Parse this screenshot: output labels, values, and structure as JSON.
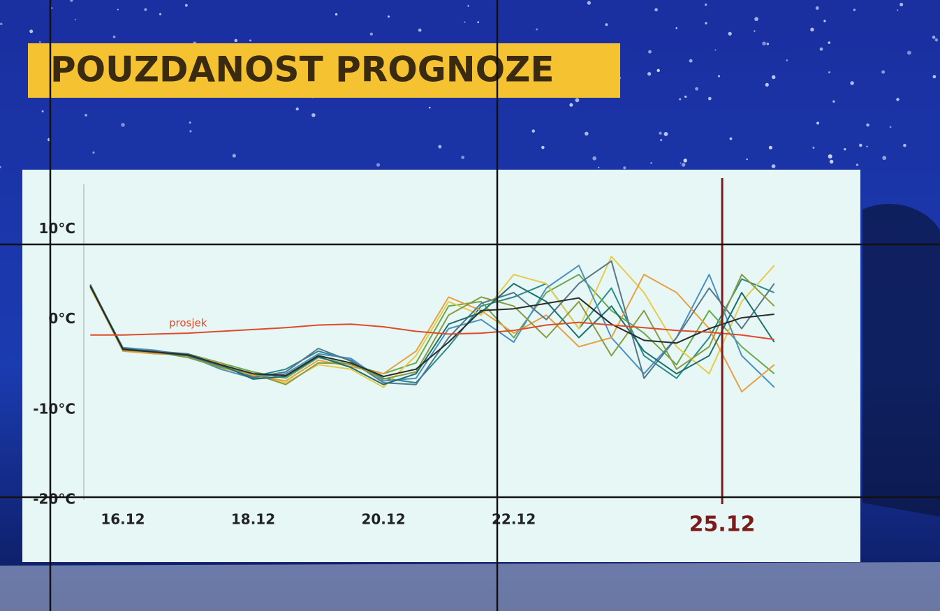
{
  "chart_data": {
    "type": "line",
    "title": "POUZDANOST PROGNOZE",
    "x": [
      15.5,
      16,
      16.5,
      17,
      17.5,
      18,
      18.5,
      19,
      19.5,
      20,
      20.5,
      21,
      21.5,
      22,
      22.5,
      23,
      23.5,
      24,
      24.5,
      25,
      25.5,
      26
    ],
    "xlim": [
      15.4,
      27.3
    ],
    "xticks": [
      {
        "value": 16,
        "label": "16.12"
      },
      {
        "value": 18,
        "label": "18.12"
      },
      {
        "value": 20,
        "label": "20.12"
      },
      {
        "value": 22,
        "label": "22.12"
      }
    ],
    "highlight": {
      "value": 25.2,
      "label": "25.12",
      "color": "#7d1a1a"
    },
    "ylim": [
      -20,
      15
    ],
    "yticks": [
      {
        "value": 10,
        "label": "10°C"
      },
      {
        "value": 0,
        "label": "0°C"
      },
      {
        "value": -10,
        "label": "-10°C"
      },
      {
        "value": -20,
        "label": "-20°C"
      }
    ],
    "series": [
      {
        "color": "#2a8a8a",
        "values": [
          3.8,
          -3.2,
          -3.5,
          -4.0,
          -5.2,
          -6.3,
          -5.5,
          -3.5,
          -4.5,
          -6.5,
          -7.0,
          -3.0,
          1.5,
          2.5,
          4.0,
          -1.0,
          3.5,
          -4.0,
          -6.5,
          -2.0,
          4.5,
          3.0
        ]
      },
      {
        "color": "#6aa84f",
        "values": [
          3.6,
          -3.4,
          -3.7,
          -3.8,
          -4.8,
          -5.8,
          -6.5,
          -4.2,
          -5.0,
          -6.0,
          -4.8,
          1.5,
          2.0,
          -2.0,
          3.0,
          5.0,
          1.0,
          -1.5,
          -5.0,
          1.0,
          -3.0,
          -6.0
        ]
      },
      {
        "color": "#e6cc4a",
        "values": [
          3.5,
          -3.3,
          -3.6,
          -4.1,
          -5.4,
          -6.1,
          -7.0,
          -5.0,
          -5.5,
          -7.5,
          -4.0,
          2.0,
          0.5,
          5.0,
          4.0,
          -1.0,
          7.0,
          3.0,
          -3.0,
          -6.0,
          2.0,
          6.0
        ]
      },
      {
        "color": "#4a90c0",
        "values": [
          3.7,
          -3.1,
          -3.4,
          -4.0,
          -5.5,
          -6.5,
          -6.0,
          -3.8,
          -4.3,
          -6.8,
          -6.5,
          -1.0,
          0.0,
          -2.5,
          3.5,
          6.0,
          -2.0,
          -6.0,
          -2.0,
          5.0,
          -4.0,
          -7.5
        ]
      },
      {
        "color": "#e8a040",
        "values": [
          3.6,
          -3.5,
          -3.8,
          -3.9,
          -4.9,
          -6.2,
          -6.8,
          -4.5,
          -5.2,
          -6.0,
          -3.5,
          2.5,
          1.0,
          -1.5,
          0.5,
          -3.0,
          -2.0,
          5.0,
          3.0,
          -1.0,
          -8.0,
          -5.0
        ]
      },
      {
        "color": "#557788",
        "values": [
          3.9,
          -3.3,
          -3.5,
          -3.8,
          -5.1,
          -6.4,
          -5.8,
          -3.2,
          -4.6,
          -7.0,
          -7.2,
          -2.0,
          1.8,
          3.0,
          0.0,
          4.0,
          6.5,
          -6.5,
          -2.0,
          3.5,
          -1.0,
          4.0
        ]
      },
      {
        "color": "#8a9a40",
        "values": [
          3.7,
          -3.4,
          -3.6,
          -4.2,
          -5.3,
          -6.0,
          -7.2,
          -4.8,
          -4.9,
          -6.6,
          -5.8,
          0.5,
          2.5,
          1.5,
          -2.0,
          2.0,
          -4.0,
          1.0,
          -5.5,
          -3.0,
          5.0,
          1.5
        ]
      },
      {
        "color": "#1e6e6e",
        "values": [
          3.8,
          -3.2,
          -3.6,
          -4.0,
          -5.0,
          -6.6,
          -6.3,
          -4.1,
          -5.3,
          -7.2,
          -6.0,
          -0.5,
          0.8,
          4.0,
          2.0,
          -2.0,
          1.5,
          -3.5,
          -6.0,
          -4.0,
          3.0,
          -2.5
        ]
      },
      {
        "color": "#2b2b2b",
        "values": [
          3.7,
          -3.3,
          -3.6,
          -3.9,
          -5.0,
          -6.0,
          -6.2,
          -4.0,
          -4.8,
          -6.3,
          -5.5,
          -2.5,
          1.0,
          1.2,
          1.8,
          2.4,
          -0.5,
          -2.3,
          -2.6,
          -1.0,
          0.2,
          0.6
        ]
      },
      {
        "name": "prosjek",
        "color": "#e04a2a",
        "values": [
          -1.7,
          -1.7,
          -1.6,
          -1.5,
          -1.3,
          -1.1,
          -0.9,
          -0.6,
          -0.5,
          -0.8,
          -1.3,
          -1.6,
          -1.5,
          -1.2,
          -0.6,
          -0.3,
          -0.6,
          -0.9,
          -1.2,
          -1.4,
          -1.7,
          -2.2
        ]
      }
    ]
  }
}
